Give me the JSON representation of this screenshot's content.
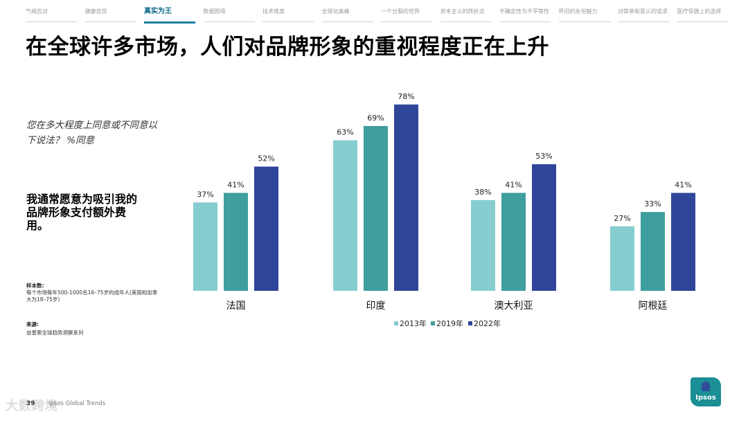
{
  "nav": {
    "items": [
      {
        "label": "气候应对"
      },
      {
        "label": "健康自觉"
      },
      {
        "label": "真实为王"
      },
      {
        "label": "数据困境"
      },
      {
        "label": "技术维度"
      },
      {
        "label": "全球化高峰"
      },
      {
        "label": "一个分裂的世界"
      },
      {
        "label": "资本主义的转折点"
      },
      {
        "label": "不确定性与不平等性"
      },
      {
        "label": "怀旧的永恒魅力"
      },
      {
        "label": "对简单和意义的追求"
      },
      {
        "label": "医疗保健上的选择"
      }
    ],
    "active_index": 2,
    "active_color": "#0f6c8a"
  },
  "title": "在全球许多市场，人们对品牌形象的重视程度正在上升",
  "question": "您在多大程度上同意或不同意以下说法？ %同意",
  "statement": "我通常愿意为吸引我的品牌形象支付额外费用。",
  "sample": {
    "label": "样本数:",
    "text": "每个市场每年500-1000名16–75岁的成年人(美国和加拿大为18–75岁)"
  },
  "source": {
    "label": "来源:",
    "text": "益普索全球趋势洞察系列"
  },
  "footer": {
    "page_number": "39",
    "brand": "Ipsos Global Trends",
    "watermark": "大数跨境"
  },
  "logo": {
    "text": "Ipsos"
  },
  "chart_data": {
    "type": "bar",
    "categories": [
      "法国",
      "印度",
      "澳大利亚",
      "阿根廷"
    ],
    "series": [
      {
        "name": "2013年",
        "values": [
          37,
          63,
          38,
          27
        ],
        "color": "#86cdd0"
      },
      {
        "name": "2019年",
        "values": [
          41,
          69,
          41,
          33
        ],
        "color": "#3f9e9e"
      },
      {
        "name": "2022年",
        "values": [
          52,
          78,
          53,
          41
        ],
        "color": "#2f459a"
      }
    ],
    "value_suffix": "%",
    "ylim": [
      0,
      100
    ],
    "grid": false,
    "legend": "bottom"
  }
}
